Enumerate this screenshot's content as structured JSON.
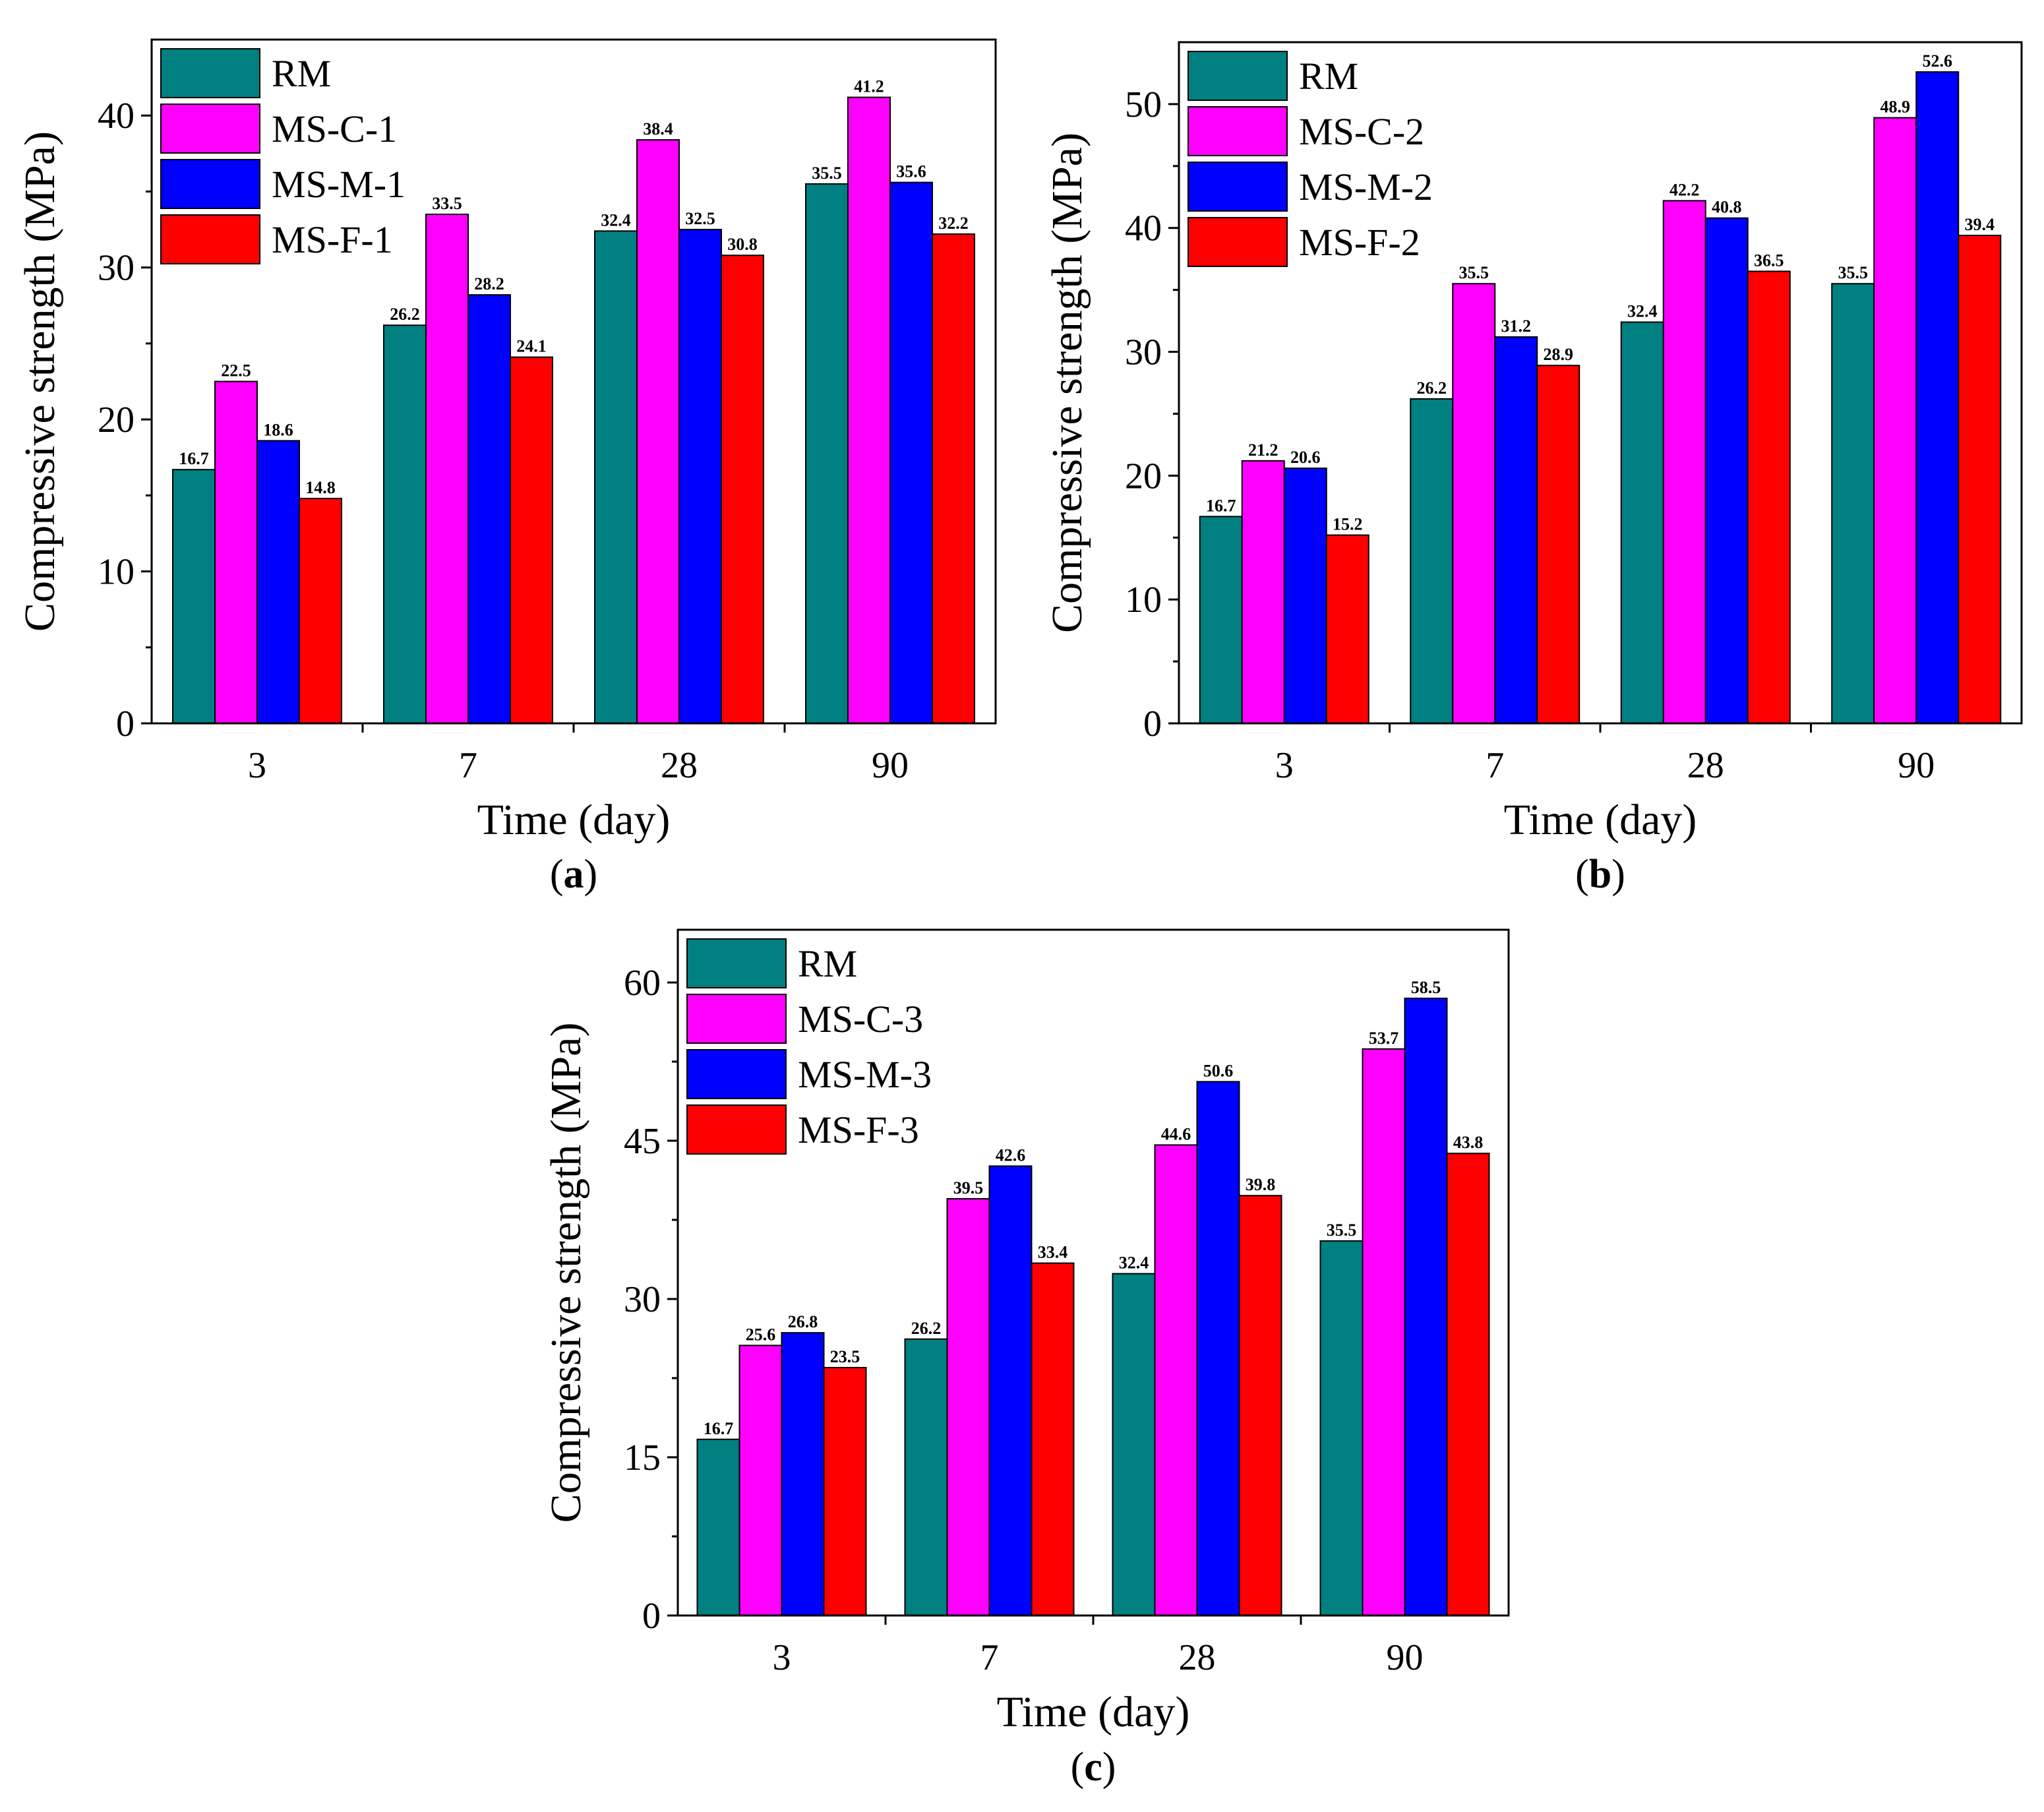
{
  "colors": {
    "RM": "#008080",
    "MS-C": "#ff00ff",
    "MS-M": "#0000ff",
    "MS-F": "#ff0000",
    "axis": "#000000"
  },
  "chart_data": [
    {
      "type": "bar",
      "panel_label": "a",
      "categories": [
        "3",
        "7",
        "28",
        "90"
      ],
      "xlabel": "Time (day)",
      "ylabel": "Compressive strength (MPa)",
      "ylim": [
        0,
        45
      ],
      "yticks": [
        0,
        10,
        20,
        30,
        40
      ],
      "yminor": [
        5,
        15,
        25,
        35
      ],
      "legend_position": "top-left",
      "series": [
        {
          "name": "RM",
          "color_key": "RM",
          "values": [
            16.7,
            26.2,
            32.4,
            35.5
          ],
          "labels": [
            "16.7",
            "26.2",
            "32.4",
            "35.5"
          ]
        },
        {
          "name": "MS-C-1",
          "color_key": "MS-C",
          "values": [
            22.5,
            33.5,
            38.4,
            41.2
          ],
          "labels": [
            "22.5",
            "33.5",
            "38.4",
            "41.2"
          ]
        },
        {
          "name": "MS-M-1",
          "color_key": "MS-M",
          "values": [
            18.6,
            28.2,
            32.5,
            35.6
          ],
          "labels": [
            "18.6",
            "28.2",
            "32.5",
            "35.6"
          ]
        },
        {
          "name": "MS-F-1",
          "color_key": "MS-F",
          "values": [
            14.8,
            24.1,
            30.8,
            32.2
          ],
          "labels": [
            "14.8",
            "24.1",
            "30.8",
            "32.2"
          ]
        }
      ]
    },
    {
      "type": "bar",
      "panel_label": "b",
      "categories": [
        "3",
        "7",
        "28",
        "90"
      ],
      "xlabel": "Time (day)",
      "ylabel": "Compressive strength (MPa)",
      "ylim": [
        0,
        55
      ],
      "yticks": [
        0,
        10,
        20,
        30,
        40,
        50
      ],
      "yminor": [
        5,
        15,
        25,
        35,
        45
      ],
      "legend_position": "top-left",
      "series": [
        {
          "name": "RM",
          "color_key": "RM",
          "values": [
            16.7,
            26.2,
            32.4,
            35.5
          ],
          "labels": [
            "16.7",
            "26.2",
            "32.4",
            "35.5"
          ]
        },
        {
          "name": "MS-C-2",
          "color_key": "MS-C",
          "values": [
            21.2,
            35.5,
            42.2,
            48.9
          ],
          "labels": [
            "21.2",
            "35.5",
            "42.2",
            "48.9"
          ]
        },
        {
          "name": "MS-M-2",
          "color_key": "MS-M",
          "values": [
            20.6,
            31.2,
            40.8,
            52.6
          ],
          "labels": [
            "20.6",
            "31.2",
            "40.8",
            "52.6"
          ]
        },
        {
          "name": "MS-F-2",
          "color_key": "MS-F",
          "values": [
            15.2,
            28.9,
            36.5,
            39.4
          ],
          "labels": [
            "15.2",
            "28.9",
            "36.5",
            "39.4"
          ]
        }
      ]
    },
    {
      "type": "bar",
      "panel_label": "c",
      "categories": [
        "3",
        "7",
        "28",
        "90"
      ],
      "xlabel": "Time (day)",
      "ylabel": "Compressive strength (MPa)",
      "ylim": [
        0,
        65
      ],
      "yticks": [
        0,
        15,
        30,
        45,
        60
      ],
      "yminor": [
        7.5,
        22.5,
        37.5,
        52.5
      ],
      "legend_position": "top-left",
      "series": [
        {
          "name": "RM",
          "color_key": "RM",
          "values": [
            16.7,
            26.2,
            32.4,
            35.5
          ],
          "labels": [
            "16.7",
            "26.2",
            "32.4",
            "35.5"
          ]
        },
        {
          "name": "MS-C-3",
          "color_key": "MS-C",
          "values": [
            25.6,
            39.5,
            44.6,
            53.7
          ],
          "labels": [
            "25.6",
            "39.5",
            "44.6",
            "53.7"
          ]
        },
        {
          "name": "MS-M-3",
          "color_key": "MS-M",
          "values": [
            26.8,
            42.6,
            50.6,
            58.5
          ],
          "labels": [
            "26.8",
            "42.6",
            "50.6",
            "58.5"
          ]
        },
        {
          "name": "MS-F-3",
          "color_key": "MS-F",
          "values": [
            23.5,
            33.4,
            39.8,
            43.8
          ],
          "labels": [
            "23.5",
            "33.4",
            "39.8",
            "43.8"
          ]
        }
      ]
    }
  ]
}
